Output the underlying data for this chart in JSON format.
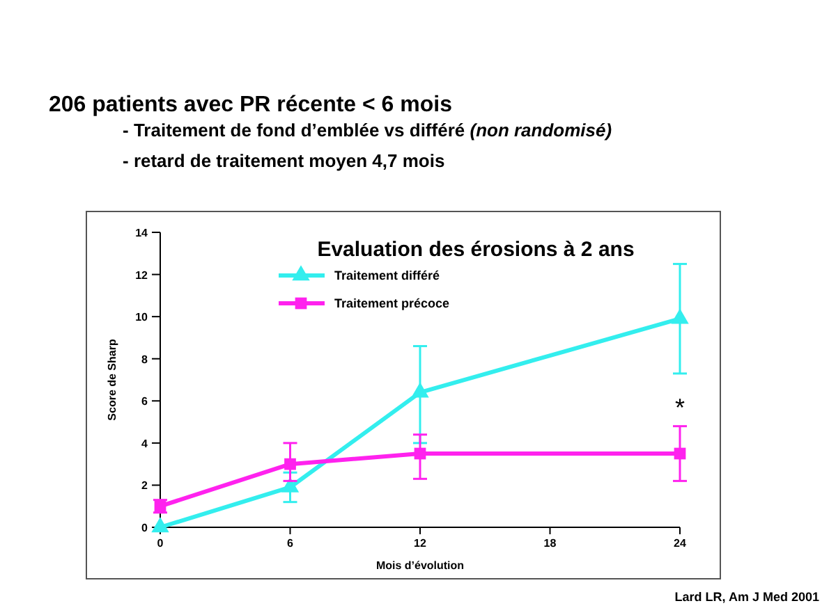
{
  "chart_data": {
    "type": "line",
    "title": "Evaluation des érosions à 2 ans",
    "subtitle": "206 patients avec PR récente < 6 mois",
    "xlabel": "Mois d’évolution",
    "ylabel": "Score de Sharp",
    "annotations": [
      "- Traitement de fond d’emblée vs différé (non randomisé)",
      "- retard de traitement moyen 4,7 mois",
      "*",
      "Lard LR, Am J Med 2001"
    ],
    "x": [
      0,
      6,
      12,
      24
    ],
    "series": [
      {
        "name": "Traitement différé",
        "color": "#33eeee",
        "marker": "triangle",
        "values": [
          0,
          1.9,
          6.4,
          9.9
        ],
        "errors": [
          null,
          [
            1.2,
            2.6
          ],
          [
            4.0,
            8.6
          ],
          [
            7.3,
            12.5
          ]
        ]
      },
      {
        "name": "Traitement précoce",
        "color": "#ff22ee",
        "marker": "square",
        "values": [
          1.0,
          3.0,
          3.5,
          3.5
        ],
        "errors": [
          [
            0.7,
            1.3
          ],
          [
            2.2,
            4.0
          ],
          [
            2.3,
            4.4
          ],
          [
            2.2,
            4.8
          ]
        ]
      }
    ],
    "xlim": [
      0,
      24
    ],
    "xticks": [
      0,
      6,
      12,
      18,
      24
    ],
    "ylim": [
      0,
      14
    ],
    "yticks": [
      0,
      2,
      4,
      6,
      8,
      10,
      12,
      14
    ],
    "grid": false,
    "legend": "top",
    "line_style": "solid"
  }
}
